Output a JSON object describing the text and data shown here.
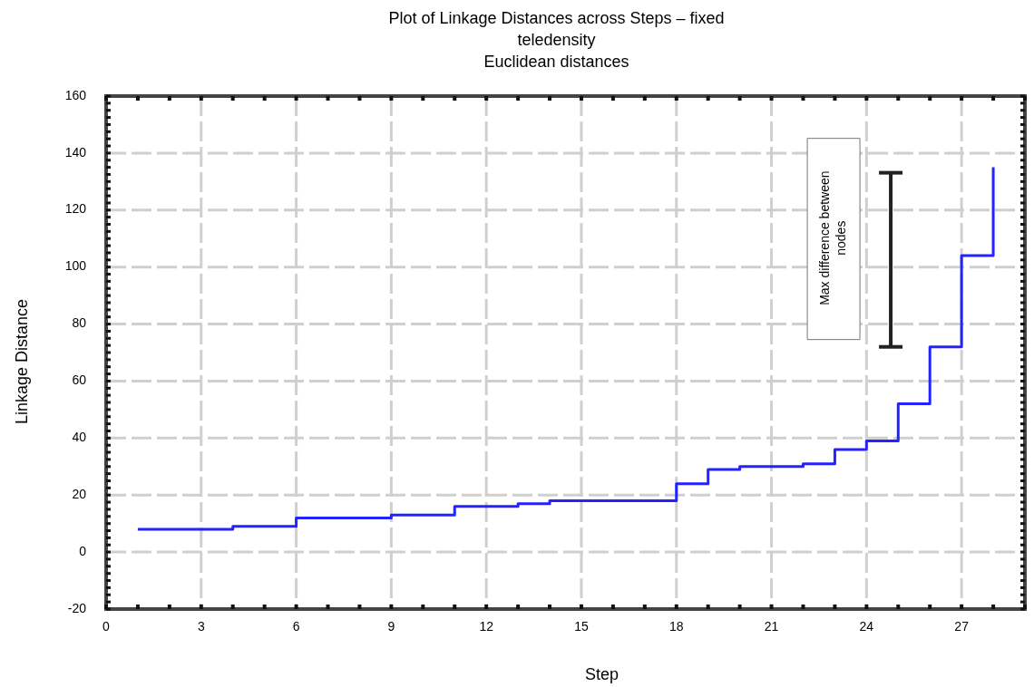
{
  "chart_data": {
    "type": "step",
    "title": "Plot of Linkage Distances across Steps – fixed teledensity",
    "subtitle": "Euclidean distances",
    "xlabel": "Step",
    "ylabel": "Linkage Distance",
    "x": [
      1,
      4,
      6,
      9,
      11,
      13,
      14,
      18,
      19,
      20,
      22,
      23,
      24,
      25,
      26,
      27,
      28
    ],
    "series": [
      {
        "color": "#2323ff",
        "values": [
          8,
          9,
          12,
          13,
          16,
          17,
          18,
          24,
          29,
          30,
          31,
          36,
          39,
          52,
          72,
          104,
          135
        ]
      }
    ],
    "annotations": [
      "Max difference between nodes"
    ],
    "xlim": [
      0,
      29
    ],
    "xticks": [
      0,
      3,
      6,
      9,
      12,
      15,
      18,
      21,
      24,
      27
    ],
    "ylim": [
      -20,
      160
    ],
    "yticks": [
      -20,
      0,
      20,
      40,
      60,
      80,
      100,
      120,
      140,
      160
    ],
    "grid": true,
    "marker": "none",
    "line_style": "solid"
  }
}
